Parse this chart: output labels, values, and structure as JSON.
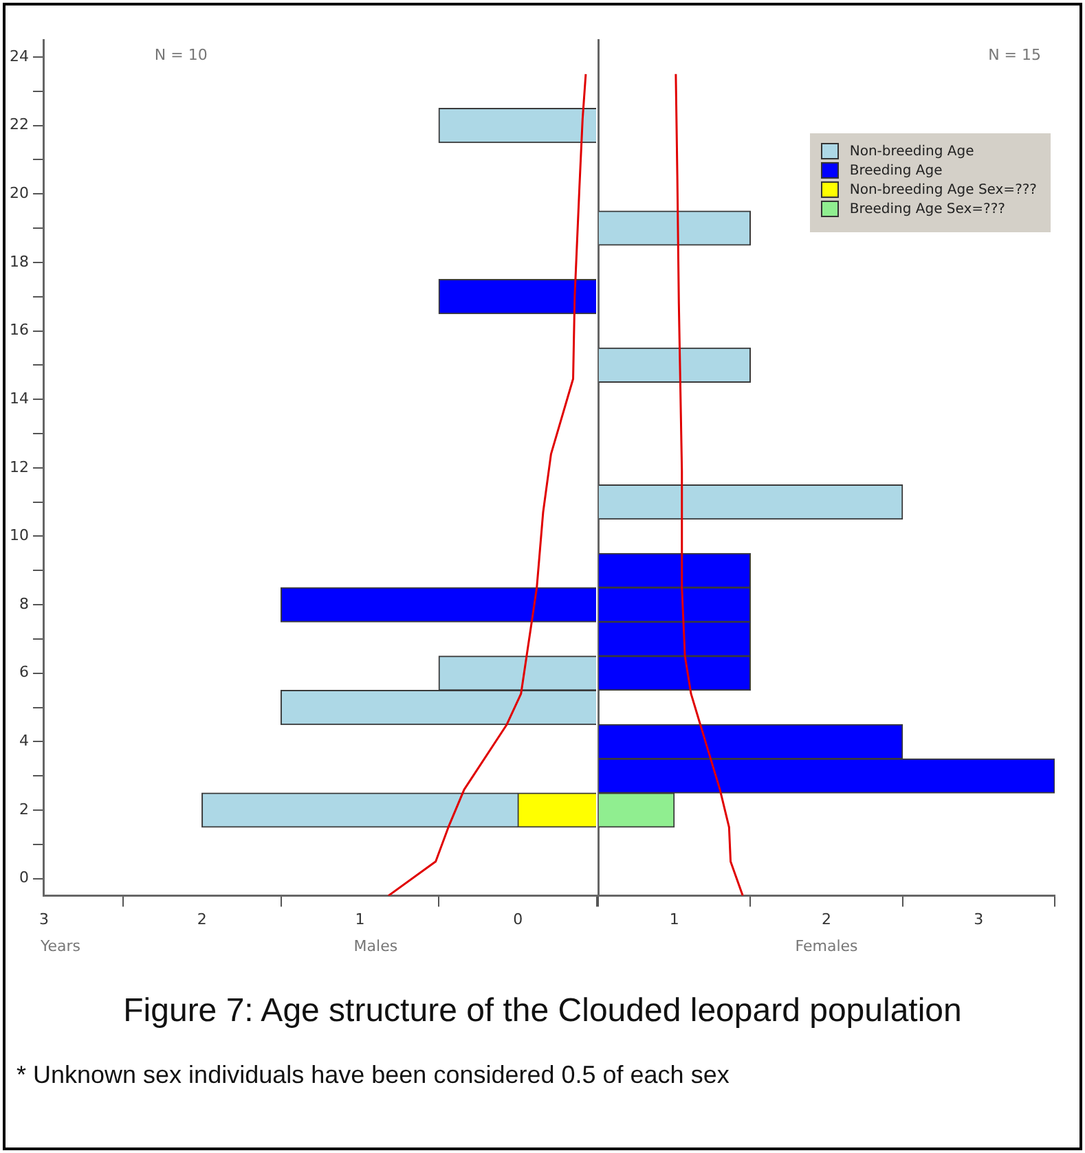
{
  "chart_data": [
    {
      "type": "bar",
      "orientation": "horizontal",
      "stacked": true,
      "title": "Figure 7: Age structure of the Clouded leopard population",
      "x": [
        2,
        5,
        6,
        8,
        17,
        22
      ],
      "series": [
        {
          "color": "#ffff00",
          "values": [
            0.5,
            null,
            null,
            null,
            null,
            null
          ]
        },
        {
          "color": "#add8e6",
          "values": [
            2,
            2,
            1,
            null,
            null,
            1
          ]
        },
        {
          "color": "#0000ff",
          "values": [
            null,
            null,
            null,
            2,
            1,
            null
          ]
        },
        {
          "type": "line",
          "color": "#e00000",
          "x": [
            -0.5,
            0.5,
            1.5,
            2.6,
            4.5,
            5.4,
            8.5,
            10.7,
            12.4,
            14.6,
            17,
            20.2,
            22.2,
            23.5
          ],
          "values": [
            1.32,
            1.02,
            0.94,
            0.84,
            0.57,
            0.48,
            0.38,
            0.34,
            0.29,
            0.15,
            0.14,
            0.11,
            0.09,
            0.07
          ]
        }
      ],
      "xlim": [
        3.5,
        0
      ],
      "xticks": [
        {
          "value": 3.5,
          "label": "3"
        },
        {
          "value": 3,
          "label": null
        },
        {
          "value": 2.5,
          "label": "2"
        },
        {
          "value": 2,
          "label": null
        },
        {
          "value": 1.5,
          "label": "1"
        },
        {
          "value": 1,
          "label": null
        },
        {
          "value": 0.5,
          "label": "0"
        },
        {
          "value": 0,
          "label": null
        }
      ],
      "ylim": [
        -0.5,
        24.5
      ],
      "yticks": [
        0,
        {
          "value": 1,
          "label": null
        },
        2,
        {
          "value": 3,
          "label": null
        },
        4,
        {
          "value": 5,
          "label": null
        },
        6,
        {
          "value": 7,
          "label": null
        },
        8,
        {
          "value": 9,
          "label": null
        },
        10,
        {
          "value": 11,
          "label": null
        },
        12,
        {
          "value": 13,
          "label": null
        },
        14,
        {
          "value": 15,
          "label": null
        },
        16,
        {
          "value": 17,
          "label": null
        },
        18,
        {
          "value": 19,
          "label": null
        },
        20,
        {
          "value": 21,
          "label": null
        },
        22,
        {
          "value": 23,
          "label": null
        },
        24
      ],
      "annotations": [
        "N = 10",
        "Males",
        "Years",
        "* Unknown sex individuals have been considered 0.5 of each sex"
      ],
      "grid": false,
      "marker": "none",
      "line_style": "solid"
    },
    {
      "type": "bar",
      "orientation": "horizontal",
      "stacked": true,
      "x": [
        2,
        3,
        4,
        6,
        7,
        8,
        9,
        11,
        15,
        19
      ],
      "series": [
        {
          "name": "Non-breeding Age",
          "color": "#add8e6",
          "values": [
            null,
            null,
            null,
            null,
            null,
            null,
            null,
            2,
            1,
            1
          ]
        },
        {
          "name": "Breeding Age",
          "color": "#0000ff",
          "values": [
            null,
            3,
            2,
            1,
            1,
            1,
            1,
            null,
            null,
            null
          ]
        },
        {
          "name": "Non-breeding Age Sex=???",
          "color": "#ffff00",
          "values": [
            null,
            null,
            null,
            null,
            null,
            null,
            null,
            null,
            null,
            null
          ]
        },
        {
          "name": "Breeding Age Sex=???",
          "color": "#90ee90",
          "values": [
            0.5,
            null,
            null,
            null,
            null,
            null,
            null,
            null,
            null,
            null
          ]
        },
        {
          "type": "line",
          "color": "#e00000",
          "x": [
            -0.5,
            0.5,
            1.5,
            2.6,
            5.4,
            6.5,
            8.5,
            11.9,
            16.8,
            20.5,
            23.5
          ],
          "values": [
            0.95,
            0.87,
            0.86,
            0.8,
            0.61,
            0.57,
            0.55,
            0.55,
            0.53,
            0.52,
            0.51
          ]
        }
      ],
      "xlim": [
        0,
        3
      ],
      "xticks": [
        {
          "value": 0,
          "label": null
        },
        {
          "value": 0.5,
          "label": "1"
        },
        {
          "value": 1,
          "label": null
        },
        {
          "value": 1.5,
          "label": "2"
        },
        {
          "value": 2,
          "label": null
        },
        {
          "value": 2.5,
          "label": "3"
        },
        {
          "value": 3,
          "label": null
        }
      ],
      "ylim": [
        -0.5,
        24.5
      ],
      "tick_labels": "x",
      "annotations": [
        "N = 15",
        "Females"
      ],
      "legend": "top right",
      "grid": false,
      "marker": "none",
      "line_style": "solid"
    }
  ]
}
